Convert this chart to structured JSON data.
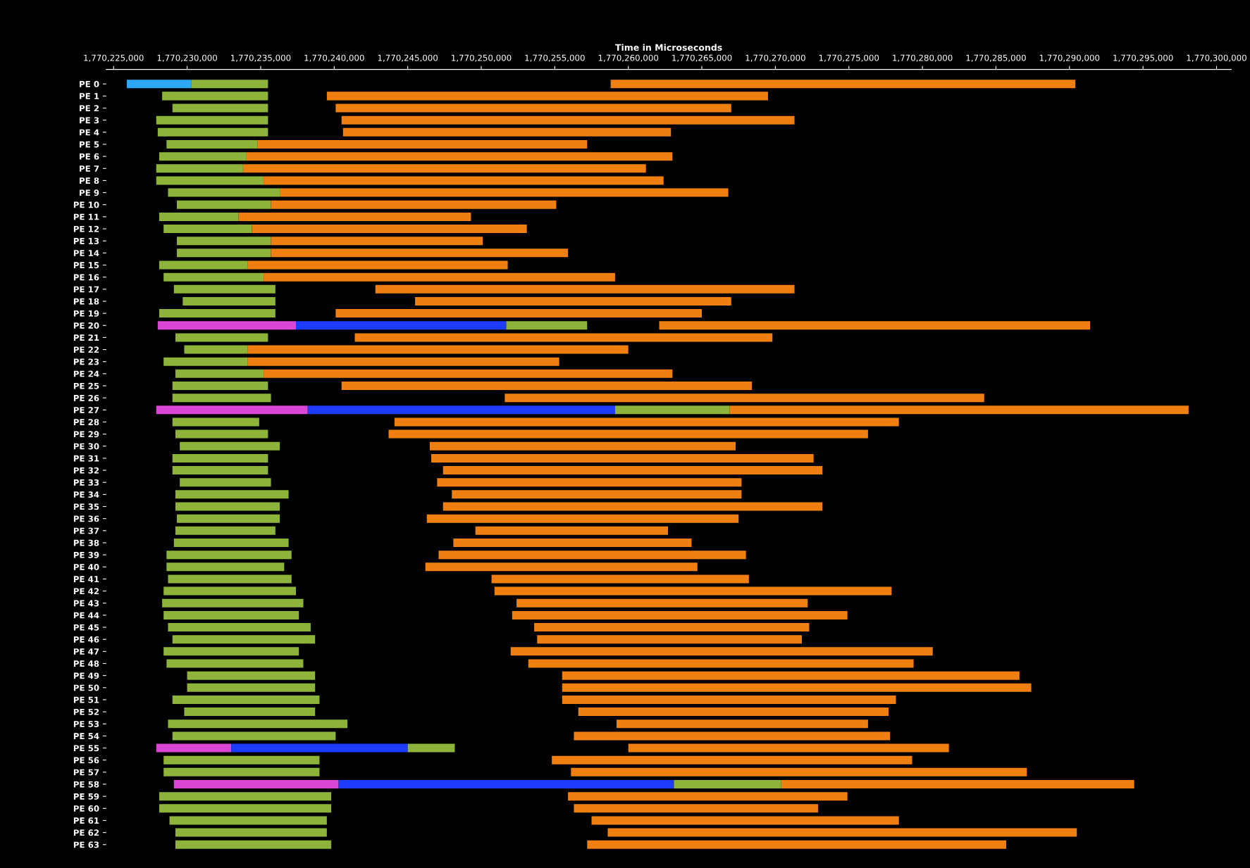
{
  "chart_data": {
    "type": "bar",
    "orientation": "horizontal",
    "xlabel": "Time in Microseconds",
    "categories": [
      "PE 0",
      "PE 1",
      "PE 2",
      "PE 3",
      "PE 4",
      "PE 5",
      "PE 6",
      "PE 7",
      "PE 8",
      "PE 9",
      "PE 10",
      "PE 11",
      "PE 12",
      "PE 13",
      "PE 14",
      "PE 15",
      "PE 16",
      "PE 17",
      "PE 18",
      "PE 19",
      "PE 20",
      "PE 21",
      "PE 22",
      "PE 23",
      "PE 24",
      "PE 25",
      "PE 26",
      "PE 27",
      "PE 28",
      "PE 29",
      "PE 30",
      "PE 31",
      "PE 32",
      "PE 33",
      "PE 34",
      "PE 35",
      "PE 36",
      "PE 37",
      "PE 38",
      "PE 39",
      "PE 40",
      "PE 41",
      "PE 42",
      "PE 43",
      "PE 44",
      "PE 45",
      "PE 46",
      "PE 47",
      "PE 48",
      "PE 49",
      "PE 50",
      "PE 51",
      "PE 52",
      "PE 53",
      "PE 54",
      "PE 55",
      "PE 56",
      "PE 57",
      "PE 58",
      "PE 59",
      "PE 60",
      "PE 61",
      "PE 62",
      "PE 63"
    ],
    "xlim": [
      1770224500,
      1770301000
    ],
    "xticks": [
      {
        "value": 1770225000,
        "label": "1,770,225,000"
      },
      {
        "value": 1770230000,
        "label": "1,770,230,000"
      },
      {
        "value": 1770235000,
        "label": "1,770,235,000"
      },
      {
        "value": 1770240000,
        "label": "1,770,240,000"
      },
      {
        "value": 1770245000,
        "label": "1,770,245,000"
      },
      {
        "value": 1770250000,
        "label": "1,770,250,000"
      },
      {
        "value": 1770255000,
        "label": "1,770,255,000"
      },
      {
        "value": 1770260000,
        "label": "1,770,260,000"
      },
      {
        "value": 1770265000,
        "label": "1,770,265,000"
      },
      {
        "value": 1770270000,
        "label": "1,770,270,000"
      },
      {
        "value": 1770275000,
        "label": "1,770,275,000"
      },
      {
        "value": 1770280000,
        "label": "1,770,280,000"
      },
      {
        "value": 1770285000,
        "label": "1,770,285,000"
      },
      {
        "value": 1770290000,
        "label": "1,770,290,000"
      },
      {
        "value": 1770295000,
        "label": "1,770,295,000"
      },
      {
        "value": 1770300000,
        "label": "1,770,300,000"
      }
    ],
    "grid": false,
    "legend": false,
    "series": [
      {
        "color": "#2ea8f5",
        "base": [
          1770225900,
          null,
          null,
          null,
          null,
          null,
          null,
          null,
          null,
          null,
          null,
          null,
          null,
          null,
          null,
          null,
          null,
          null,
          null,
          null,
          null,
          null,
          null,
          null,
          null,
          null,
          null,
          null,
          null,
          null,
          null,
          null,
          null,
          null,
          null,
          null,
          null,
          null,
          null,
          null,
          null,
          null,
          null,
          null,
          null,
          null,
          null,
          null,
          null,
          null,
          null,
          null,
          null,
          null,
          null,
          null,
          null,
          null,
          null,
          null,
          null,
          null,
          null,
          null
        ],
        "values": [
          4400,
          null,
          null,
          null,
          null,
          null,
          null,
          null,
          null,
          null,
          null,
          null,
          null,
          null,
          null,
          null,
          null,
          null,
          null,
          null,
          null,
          null,
          null,
          null,
          null,
          null,
          null,
          null,
          null,
          null,
          null,
          null,
          null,
          null,
          null,
          null,
          null,
          null,
          null,
          null,
          null,
          null,
          null,
          null,
          null,
          null,
          null,
          null,
          null,
          null,
          null,
          null,
          null,
          null,
          null,
          null,
          null,
          null,
          null,
          null,
          null,
          null,
          null,
          null
        ]
      },
      {
        "color": "#d946d4",
        "base": [
          null,
          null,
          null,
          null,
          null,
          null,
          null,
          null,
          null,
          null,
          null,
          null,
          null,
          null,
          null,
          null,
          null,
          null,
          null,
          null,
          1770228000,
          null,
          null,
          null,
          null,
          null,
          null,
          1770227900,
          null,
          null,
          null,
          null,
          null,
          null,
          null,
          null,
          null,
          null,
          null,
          null,
          null,
          null,
          null,
          null,
          null,
          null,
          null,
          null,
          null,
          null,
          null,
          null,
          null,
          null,
          null,
          1770227900,
          null,
          null,
          1770229100,
          null,
          null,
          null,
          null,
          null
        ],
        "values": [
          null,
          null,
          null,
          null,
          null,
          null,
          null,
          null,
          null,
          null,
          null,
          null,
          null,
          null,
          null,
          null,
          null,
          null,
          null,
          null,
          9400,
          null,
          null,
          null,
          null,
          null,
          null,
          10300,
          null,
          null,
          null,
          null,
          null,
          null,
          null,
          null,
          null,
          null,
          null,
          null,
          null,
          null,
          null,
          null,
          null,
          null,
          null,
          null,
          null,
          null,
          null,
          null,
          null,
          null,
          null,
          5100,
          null,
          null,
          11200,
          null,
          null,
          null,
          null,
          null
        ]
      },
      {
        "color": "#1e3cff",
        "base": [
          null,
          null,
          null,
          null,
          null,
          null,
          null,
          null,
          null,
          null,
          null,
          null,
          null,
          null,
          null,
          null,
          null,
          null,
          null,
          null,
          1770237400,
          null,
          null,
          null,
          null,
          null,
          null,
          1770238200,
          null,
          null,
          null,
          null,
          null,
          null,
          null,
          null,
          null,
          null,
          null,
          null,
          null,
          null,
          null,
          null,
          null,
          null,
          null,
          null,
          null,
          null,
          null,
          null,
          null,
          null,
          null,
          1770233000,
          null,
          null,
          1770240300,
          null,
          null,
          null,
          null,
          null
        ],
        "values": [
          null,
          null,
          null,
          null,
          null,
          null,
          null,
          null,
          null,
          null,
          null,
          null,
          null,
          null,
          null,
          null,
          null,
          null,
          null,
          null,
          14300,
          null,
          null,
          null,
          null,
          null,
          null,
          20900,
          null,
          null,
          null,
          null,
          null,
          null,
          null,
          null,
          null,
          null,
          null,
          null,
          null,
          null,
          null,
          null,
          null,
          null,
          null,
          null,
          null,
          null,
          null,
          null,
          null,
          null,
          null,
          12000,
          null,
          null,
          22800,
          null,
          null,
          null,
          null,
          null
        ]
      },
      {
        "color": "#8db33a",
        "base": [
          1770230300,
          1770228300,
          1770229000,
          1770227900,
          1770228000,
          1770228600,
          1770228100,
          1770227900,
          1770227900,
          1770228700,
          1770229300,
          1770228100,
          1770228400,
          1770229300,
          1770229300,
          1770228100,
          1770228400,
          1770229100,
          1770229700,
          1770228100,
          1770251700,
          1770229200,
          1770229800,
          1770228400,
          1770229200,
          1770229000,
          1770229000,
          1770259100,
          1770229000,
          1770229200,
          1770229500,
          1770229000,
          1770229000,
          1770229500,
          1770229200,
          1770229200,
          1770229300,
          1770229200,
          1770229100,
          1770228600,
          1770228600,
          1770228700,
          1770228400,
          1770228300,
          1770228400,
          1770228700,
          1770229000,
          1770228400,
          1770228600,
          1770230000,
          1770230000,
          1770229000,
          1770229800,
          1770228700,
          1770229000,
          1770245000,
          1770228400,
          1770228400,
          1770263100,
          1770228100,
          1770228100,
          1770228800,
          1770229200,
          1770229200
        ],
        "values": [
          5200,
          7200,
          6500,
          7600,
          7500,
          6200,
          5900,
          5900,
          7300,
          7600,
          6400,
          5400,
          6000,
          6400,
          6400,
          6000,
          6800,
          6900,
          6300,
          7900,
          5500,
          6300,
          4300,
          5700,
          6000,
          6500,
          6700,
          7800,
          5900,
          6300,
          6800,
          6500,
          6500,
          6200,
          7700,
          7100,
          7000,
          6800,
          7800,
          8500,
          8000,
          8400,
          9000,
          9600,
          9200,
          9700,
          9700,
          9200,
          9300,
          8700,
          8700,
          10000,
          8900,
          12200,
          11100,
          3200,
          10600,
          10600,
          7300,
          11700,
          11700,
          10700,
          10300,
          10600
        ]
      },
      {
        "color": "#f07f12",
        "base": [
          1770258800,
          1770239500,
          1770240100,
          1770240500,
          1770240600,
          1770234800,
          1770234000,
          1770233800,
          1770235200,
          1770236300,
          1770235700,
          1770233500,
          1770234400,
          1770235700,
          1770235700,
          1770234100,
          1770235200,
          1770242800,
          1770245500,
          1770240100,
          1770262100,
          1770241400,
          1770234100,
          1770234100,
          1770235200,
          1770240500,
          1770251600,
          1770266900,
          1770244100,
          1770243700,
          1770246500,
          1770246600,
          1770247400,
          1770247000,
          1770248000,
          1770247400,
          1770246300,
          1770249600,
          1770248100,
          1770247100,
          1770246200,
          1770250700,
          1770250900,
          1770252400,
          1770252100,
          1770253600,
          1770253800,
          1770252000,
          1770253200,
          1770255500,
          1770255500,
          1770255500,
          1770256600,
          1770259200,
          1770256300,
          1770260000,
          1770254800,
          1770256100,
          1770270400,
          1770255900,
          1770256300,
          1770257500,
          1770258600,
          1770257200
        ],
        "values": [
          31600,
          30000,
          26900,
          30800,
          22300,
          22400,
          29000,
          27400,
          27200,
          30500,
          19400,
          15800,
          18700,
          14400,
          20200,
          17700,
          23900,
          28500,
          21500,
          24900,
          29300,
          28400,
          25900,
          21200,
          27800,
          27900,
          32600,
          31200,
          34300,
          32600,
          20800,
          26000,
          25800,
          20700,
          19700,
          25800,
          21200,
          13100,
          16200,
          20900,
          18500,
          17500,
          27000,
          19800,
          22800,
          18700,
          18000,
          28700,
          26200,
          31100,
          31900,
          22700,
          21100,
          17100,
          21500,
          21800,
          24500,
          31000,
          24000,
          19000,
          16600,
          20900,
          31900,
          28500
        ]
      }
    ]
  }
}
